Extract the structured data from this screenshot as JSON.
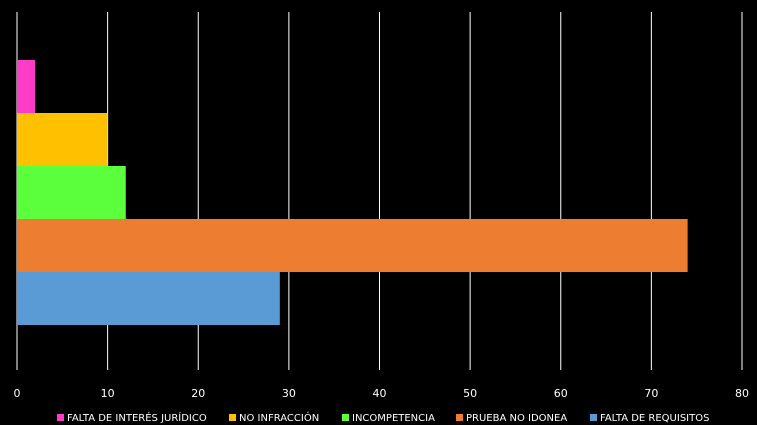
{
  "chart_data": {
    "type": "bar",
    "orientation": "horizontal",
    "title": "",
    "xlabel": "",
    "ylabel": "",
    "xlim": [
      0,
      80
    ],
    "x_ticks": [
      0,
      10,
      20,
      30,
      40,
      50,
      60,
      70,
      80
    ],
    "grid": "vertical",
    "legend_position": "bottom",
    "background": "#000000",
    "series": [
      {
        "name": "FALTA DE INTERÉS JURÍDICO",
        "value": 2,
        "color": "#ff3cc8"
      },
      {
        "name": "NO INFRACCIÓN",
        "value": 10,
        "color": "#ffc000"
      },
      {
        "name": "INCOMPETENCIA",
        "value": 12,
        "color": "#5cff3c"
      },
      {
        "name": "PRUEBA NO IDONEA",
        "value": 74,
        "color": "#ed7d31"
      },
      {
        "name": "FALTA DE REQUISITOS",
        "value": 29,
        "color": "#5b9bd5"
      }
    ]
  }
}
